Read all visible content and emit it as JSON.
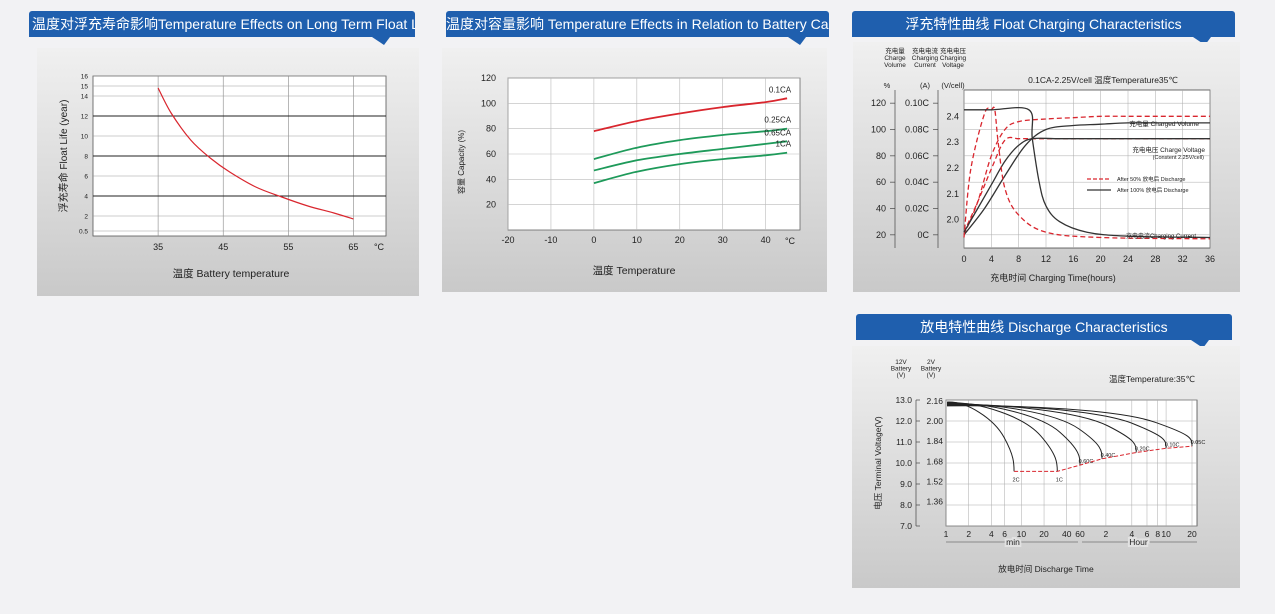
{
  "chart_data": [
    {
      "id": "float_life",
      "type": "line",
      "title": "温度对浮充寿命影响Temperature Effects on Long Term Float Life",
      "xlabel": "温度  Battery temperature",
      "ylabel": "浮充寿命  Float Life (year)",
      "x_unit": "°C",
      "x_ticks": [
        35,
        45,
        55,
        65
      ],
      "y_ticks": [
        "0.5",
        "2",
        "4",
        "6",
        "8",
        "10",
        "12",
        "14",
        "15",
        "16"
      ],
      "xlim": [
        25,
        70
      ],
      "ylim": [
        0,
        16
      ],
      "grid": true,
      "series": [
        {
          "color": "#d9262e",
          "x": [
            35,
            37,
            40,
            43,
            46,
            50,
            54,
            58,
            62,
            65
          ],
          "y": [
            14.8,
            12.3,
            9.6,
            7.8,
            6.4,
            4.9,
            3.9,
            3.0,
            2.3,
            1.7
          ]
        }
      ]
    },
    {
      "id": "capacity",
      "type": "line",
      "title": "温度对容量影响 Temperature Effects in Relation to Battery Capacity",
      "xlabel": "温度  Temperature",
      "ylabel": "容量  Capacity (%)",
      "x_unit": "°C",
      "x_ticks": [
        -20,
        -10,
        0,
        10,
        20,
        30,
        40
      ],
      "y_ticks": [
        20,
        40,
        60,
        80,
        100,
        120
      ],
      "xlim": [
        -20,
        48
      ],
      "ylim": [
        0,
        120
      ],
      "grid": true,
      "series": [
        {
          "name": "0.1CA",
          "color": "#d9262e",
          "x": [
            0,
            10,
            20,
            30,
            40,
            45
          ],
          "y": [
            78,
            86,
            92,
            97,
            101,
            104
          ]
        },
        {
          "name": "0.25CA",
          "color": "#1e9a5a",
          "x": [
            0,
            10,
            20,
            30,
            40,
            45
          ],
          "y": [
            56,
            65,
            71,
            75,
            78,
            80
          ]
        },
        {
          "name": "0.65CA",
          "color": "#1e9a5a",
          "x": [
            0,
            10,
            20,
            30,
            40,
            45
          ],
          "y": [
            47,
            55,
            60,
            64,
            68,
            70
          ]
        },
        {
          "name": "1CA",
          "color": "#1e9a5a",
          "x": [
            0,
            10,
            20,
            30,
            40,
            45
          ],
          "y": [
            37,
            46,
            52,
            56,
            59,
            61
          ]
        }
      ]
    },
    {
      "id": "float_charging",
      "type": "line",
      "title": "浮充特性曲线 Float Charging Characteristics",
      "xlabel": "充电时间 Charging Time(hours)",
      "axis_headers": [
        {
          "lines": [
            "充电量",
            "Charge",
            "Volume"
          ],
          "unit": "%"
        },
        {
          "lines": [
            "充电电流",
            "Charging",
            "Current"
          ],
          "unit": "(A)"
        },
        {
          "lines": [
            "充电电压",
            "Charging",
            "Voltage"
          ],
          "unit": "(V/cell)"
        }
      ],
      "condition": "0.1CA-2.25V/cell  温度Temperature35℃",
      "x_ticks": [
        0,
        4,
        8,
        12,
        16,
        20,
        24,
        28,
        32,
        36
      ],
      "vol_ticks": [
        20,
        40,
        60,
        80,
        100,
        120
      ],
      "cur_ticks": [
        "0C",
        "0.02C",
        "0.04C",
        "0.06C",
        "0.08C",
        "0.10C"
      ],
      "volt_ticks": [
        "2.0",
        "2.1",
        "2.2",
        "2.3",
        "2.4"
      ],
      "xlim": [
        0,
        36
      ],
      "ylim": [
        10,
        130
      ],
      "grid": true,
      "curve_labels": [
        "充电量  Charged Volume",
        "充电电压  Charge Voltage",
        "(Constent 2.25V/cell)",
        "充电电流Charging Current"
      ],
      "legend": [
        {
          "label": "After 50% 放电后 Discharge",
          "style": "dashed",
          "color": "#d9262e"
        },
        {
          "label": "After 100% 放电后 Discharge",
          "style": "solid",
          "color": "#333333"
        }
      ],
      "series": [
        {
          "group": "Charged Volume",
          "condition": "After 50%",
          "color": "#d9262e",
          "dashed": true,
          "x": [
            0,
            2,
            4,
            6,
            8,
            12,
            16,
            20,
            24,
            30,
            36
          ],
          "y": [
            20,
            45,
            80,
            100,
            106,
            108,
            109,
            110,
            110,
            110,
            110
          ]
        },
        {
          "group": "Charged Volume",
          "condition": "After 100%",
          "color": "#333333",
          "dashed": false,
          "x": [
            0,
            3,
            6,
            9,
            12,
            16,
            20,
            24,
            30,
            36
          ],
          "y": [
            20,
            40,
            65,
            88,
            100,
            103,
            104,
            105,
            105,
            105
          ]
        },
        {
          "group": "Charge Voltage",
          "condition": "After 50%",
          "color": "#d9262e",
          "dashed": true,
          "x": [
            0,
            2,
            4,
            6,
            8,
            10,
            14,
            20,
            28,
            36
          ],
          "y": [
            22,
            45,
            70,
            92,
            93,
            93,
            93,
            93,
            93,
            93
          ]
        },
        {
          "group": "Charge Voltage",
          "condition": "After 100%",
          "color": "#333333",
          "dashed": false,
          "x": [
            0,
            2,
            4,
            6,
            8,
            10,
            14,
            20,
            28,
            36
          ],
          "y": [
            22,
            40,
            58,
            76,
            88,
            93,
            93,
            93,
            93,
            93
          ]
        },
        {
          "group": "Charging Current",
          "condition": "After 50%",
          "color": "#d9262e",
          "dashed": true,
          "x": [
            0,
            1,
            3,
            4,
            4.5,
            5,
            6,
            8,
            12,
            20,
            36
          ],
          "y": [
            18,
            70,
            112,
            115,
            115,
            90,
            55,
            35,
            22,
            18,
            17
          ]
        },
        {
          "group": "Charging Current",
          "condition": "After 100%",
          "color": "#333333",
          "dashed": false,
          "x": [
            0,
            4,
            9.5,
            10,
            11,
            12,
            14,
            18,
            24,
            36
          ],
          "y": [
            115,
            115,
            115,
            93,
            60,
            42,
            30,
            22,
            19,
            18
          ]
        }
      ]
    },
    {
      "id": "discharge",
      "type": "line",
      "title": "放电特性曲线 Discharge Characteristics",
      "xlabel": "放电时间 Discharge Time",
      "ylabel": "电压 Terminal Voltage(V)",
      "axis_headers": [
        {
          "lines": [
            "12V",
            "Battery",
            "(V)"
          ]
        },
        {
          "lines": [
            "2V",
            "Battery",
            "(V)"
          ]
        }
      ],
      "condition": "温度Temperature:35℃",
      "y12_ticks": [
        "7.0",
        "8.0",
        "9.0",
        "10.0",
        "11.0",
        "12.0",
        "13.0"
      ],
      "y2_ticks": [
        "1.36",
        "1.52",
        "1.68",
        "1.84",
        "2.00",
        "2.16"
      ],
      "min_ticks": [
        "1",
        "2",
        "4",
        "6",
        "10",
        "20",
        "40",
        "60"
      ],
      "hour_ticks": [
        "2",
        "4",
        "6",
        "8",
        "10",
        "20"
      ],
      "min_label": "min",
      "hour_label": "Hour",
      "ylim": [
        7.0,
        13.0
      ],
      "grid": true,
      "series": [
        {
          "name": "2C",
          "end_minutes": 8,
          "end_voltage": 9.6,
          "mid_voltage": 12.1
        },
        {
          "name": "1C",
          "end_minutes": 30,
          "end_voltage": 9.6,
          "mid_voltage": 12.2
        },
        {
          "name": "0.60C",
          "end_minutes": 60,
          "end_voltage": 9.9,
          "mid_voltage": 12.3
        },
        {
          "name": "0.40C",
          "end_minutes": 108,
          "end_voltage": 10.2,
          "mid_voltage": 12.4
        },
        {
          "name": "0.20C",
          "end_minutes": 270,
          "end_voltage": 10.5,
          "mid_voltage": 12.45
        },
        {
          "name": "0.10C",
          "end_minutes": 600,
          "end_voltage": 10.7,
          "mid_voltage": 12.5
        },
        {
          "name": "0.05C",
          "end_minutes": 1200,
          "end_voltage": 10.8,
          "mid_voltage": 12.55
        }
      ]
    }
  ]
}
